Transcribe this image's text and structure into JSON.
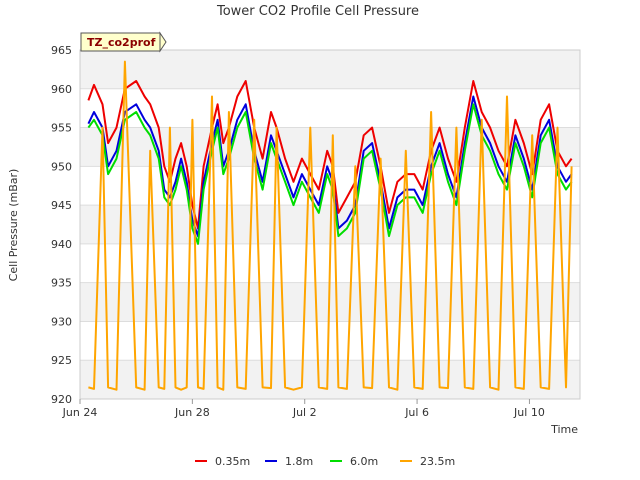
{
  "chart_data": {
    "type": "line",
    "title": "Tower CO2 Profile Cell Pressure",
    "badge": "TZ_co2prof",
    "xlabel": "Time",
    "ylabel": "Cell Pressure (mBar)",
    "ylim": [
      920,
      965
    ],
    "yticks": [
      920,
      925,
      930,
      935,
      940,
      945,
      950,
      955,
      960,
      965
    ],
    "xlim": [
      0,
      17.8
    ],
    "xticks": [
      {
        "x": 0,
        "label": "Jun 24"
      },
      {
        "x": 4,
        "label": "Jun 28"
      },
      {
        "x": 8,
        "label": "Jul 2"
      },
      {
        "x": 12,
        "label": "Jul 6"
      },
      {
        "x": 16,
        "label": "Jul 10"
      }
    ],
    "grid": true,
    "legend_position": "bottom",
    "colors": {
      "0.35m": "#ee0000",
      "1.8m": "#0000dd",
      "6.0m": "#00dd00",
      "23.5m": "#ffa500",
      "band": "#f2f2f2",
      "grid": "#dddddd",
      "badge_bg": "#ffffcc"
    },
    "series": [
      {
        "name": "0.35m",
        "color": "#ee0000",
        "x": [
          0.3,
          0.5,
          0.8,
          1.0,
          1.3,
          1.6,
          2.0,
          2.3,
          2.5,
          2.8,
          3.0,
          3.2,
          3.4,
          3.6,
          3.8,
          4.0,
          4.2,
          4.4,
          4.7,
          4.9,
          5.1,
          5.3,
          5.6,
          5.9,
          6.2,
          6.5,
          6.8,
          7.0,
          7.3,
          7.6,
          7.9,
          8.2,
          8.5,
          8.8,
          9.0,
          9.2,
          9.5,
          9.8,
          10.1,
          10.4,
          10.7,
          11.0,
          11.3,
          11.6,
          11.9,
          12.2,
          12.5,
          12.8,
          13.1,
          13.4,
          13.7,
          14.0,
          14.3,
          14.6,
          14.9,
          15.2,
          15.5,
          15.8,
          16.1,
          16.4,
          16.7,
          17.0,
          17.3,
          17.5
        ],
        "y": [
          958.5,
          960.5,
          958,
          953,
          955,
          960,
          961,
          959,
          958,
          955,
          950,
          948,
          951,
          953,
          950,
          945,
          942,
          950,
          955,
          958,
          953,
          955,
          959,
          961,
          955,
          951,
          957,
          955,
          951,
          948,
          951,
          949,
          947,
          952,
          950,
          944,
          946,
          948,
          954,
          955,
          950,
          944,
          948,
          949,
          949,
          947,
          952,
          955,
          951,
          948,
          955,
          961,
          957,
          955,
          952,
          950,
          956,
          953,
          949,
          956,
          958,
          952,
          950,
          951
        ]
      },
      {
        "name": "1.8m",
        "color": "#0000dd",
        "x": [
          0.3,
          0.5,
          0.8,
          1.0,
          1.3,
          1.6,
          2.0,
          2.3,
          2.5,
          2.8,
          3.0,
          3.2,
          3.4,
          3.6,
          3.8,
          4.0,
          4.2,
          4.4,
          4.7,
          4.9,
          5.1,
          5.3,
          5.6,
          5.9,
          6.2,
          6.5,
          6.8,
          7.0,
          7.3,
          7.6,
          7.9,
          8.2,
          8.5,
          8.8,
          9.0,
          9.2,
          9.5,
          9.8,
          10.1,
          10.4,
          10.7,
          11.0,
          11.3,
          11.6,
          11.9,
          12.2,
          12.5,
          12.8,
          13.1,
          13.4,
          13.7,
          14.0,
          14.3,
          14.6,
          14.9,
          15.2,
          15.5,
          15.8,
          16.1,
          16.4,
          16.7,
          17.0,
          17.3,
          17.5
        ],
        "y": [
          955.5,
          957,
          955,
          950,
          952,
          957,
          958,
          956,
          955,
          952,
          947,
          946,
          948,
          951,
          948,
          943,
          941,
          948,
          953,
          956,
          950,
          952,
          956,
          958,
          952,
          948,
          954,
          952,
          949,
          946,
          949,
          947,
          945,
          950,
          948,
          942,
          943,
          945,
          952,
          953,
          948,
          942,
          946,
          947,
          947,
          945,
          950,
          953,
          949,
          946,
          953,
          959,
          955,
          953,
          950,
          948,
          954,
          951,
          947,
          954,
          956,
          950,
          948,
          949
        ]
      },
      {
        "name": "6.0m",
        "color": "#00dd00",
        "x": [
          0.3,
          0.5,
          0.8,
          1.0,
          1.3,
          1.6,
          2.0,
          2.3,
          2.5,
          2.8,
          3.0,
          3.2,
          3.4,
          3.6,
          3.8,
          4.0,
          4.2,
          4.4,
          4.7,
          4.9,
          5.1,
          5.3,
          5.6,
          5.9,
          6.2,
          6.5,
          6.8,
          7.0,
          7.3,
          7.6,
          7.9,
          8.2,
          8.5,
          8.8,
          9.0,
          9.2,
          9.5,
          9.8,
          10.1,
          10.4,
          10.7,
          11.0,
          11.3,
          11.6,
          11.9,
          12.2,
          12.5,
          12.8,
          13.1,
          13.4,
          13.7,
          14.0,
          14.3,
          14.6,
          14.9,
          15.2,
          15.5,
          15.8,
          16.1,
          16.4,
          16.7,
          17.0,
          17.3,
          17.5
        ],
        "y": [
          955,
          956,
          954,
          949,
          951,
          956,
          957,
          955,
          954,
          951,
          946,
          945,
          947,
          950,
          947,
          942,
          940,
          947,
          952,
          955,
          949,
          951,
          955,
          957,
          951,
          947,
          953,
          951,
          948,
          945,
          948,
          946,
          944,
          949,
          947,
          941,
          942,
          944,
          951,
          952,
          947,
          941,
          945,
          946,
          946,
          944,
          949,
          952,
          948,
          945,
          952,
          958,
          954,
          952,
          949,
          947,
          953,
          950,
          946,
          953,
          955,
          949,
          947,
          948
        ]
      },
      {
        "name": "23.5m",
        "color": "#ffa500",
        "x": [
          0.3,
          0.5,
          0.8,
          1.0,
          1.3,
          1.6,
          2.0,
          2.3,
          2.5,
          2.8,
          3.0,
          3.2,
          3.4,
          3.6,
          3.8,
          4.0,
          4.2,
          4.4,
          4.7,
          4.9,
          5.1,
          5.3,
          5.6,
          5.9,
          6.2,
          6.5,
          6.8,
          7.0,
          7.3,
          7.6,
          7.9,
          8.2,
          8.5,
          8.8,
          9.0,
          9.2,
          9.5,
          9.8,
          10.1,
          10.4,
          10.7,
          11.0,
          11.3,
          11.6,
          11.9,
          12.2,
          12.5,
          12.8,
          13.1,
          13.4,
          13.7,
          14.0,
          14.3,
          14.6,
          14.9,
          15.2,
          15.5,
          15.8,
          16.1,
          16.4,
          16.7,
          17.0,
          17.3,
          17.5
        ],
        "y": [
          921.5,
          921.3,
          955,
          921.5,
          921.2,
          963.5,
          921.5,
          921.2,
          952,
          921.5,
          921.3,
          955,
          921.5,
          921.2,
          921.5,
          956,
          921.5,
          921.3,
          959,
          921.5,
          921.2,
          957,
          921.5,
          921.3,
          956,
          921.5,
          921.4,
          955,
          921.5,
          921.2,
          921.5,
          955,
          921.5,
          921.3,
          954,
          921.5,
          921.3,
          950,
          921.5,
          921.4,
          951,
          921.5,
          921.2,
          952,
          921.5,
          921.3,
          957,
          921.5,
          921.4,
          955,
          921.5,
          921.3,
          956,
          921.5,
          921.2,
          959,
          921.5,
          921.3,
          954,
          921.5,
          921.3,
          955,
          921.5,
          950
        ]
      }
    ]
  }
}
